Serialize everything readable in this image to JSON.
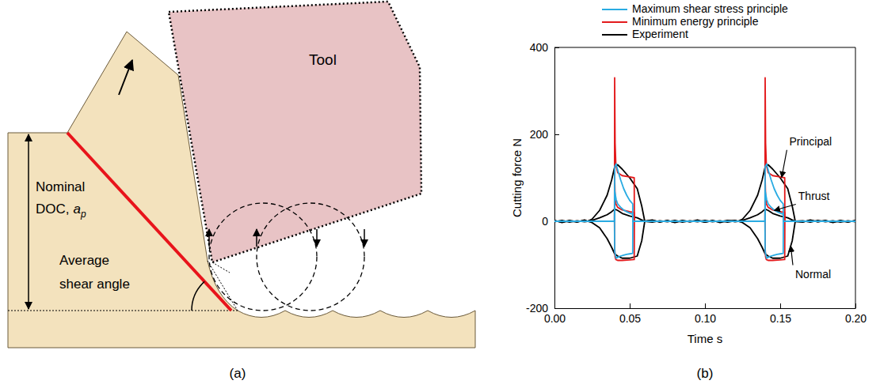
{
  "diagram": {
    "tool_label": "Tool",
    "doc_label": {
      "lines": [
        "Nominal",
        "DOC,"
      ],
      "symbol": "a",
      "subscript": "p"
    },
    "shear_label": [
      "Average",
      "shear angle"
    ],
    "caption": "(a)"
  },
  "chart_data": {
    "type": "line",
    "caption": "(b)",
    "x_label": "Time s",
    "y_label": "Cutting force N",
    "xlim": [
      0,
      0.2
    ],
    "ylim": [
      -200,
      400
    ],
    "xticks": [
      {
        "value": 0,
        "label": "0.00"
      },
      {
        "value": 0.05,
        "label": "0.05"
      },
      {
        "value": 0.1,
        "label": "0.10"
      },
      {
        "value": 0.15,
        "label": "0.15"
      },
      {
        "value": 0.2,
        "label": "0.20"
      }
    ],
    "yticks": [
      -200,
      0,
      200,
      400
    ],
    "legend": "top",
    "series": [
      {
        "name": "Maximum shear stress principle",
        "color": "#29abe2",
        "x": [
          0,
          0.0399,
          0.04,
          0.041,
          0.042,
          0.044,
          0.046,
          0.048,
          0.05,
          0.052,
          0.0521,
          0.1399,
          0.14,
          0.141,
          0.142,
          0.144,
          0.146,
          0.148,
          0.15,
          0.152,
          0.1521,
          0.2
        ],
        "principal": [
          0,
          0,
          125,
          132,
          118,
          95,
          75,
          60,
          48,
          40,
          0,
          0,
          125,
          132,
          118,
          95,
          75,
          60,
          48,
          40,
          0,
          0
        ],
        "thrust": [
          0,
          0,
          70,
          50,
          40,
          32,
          26,
          22,
          19,
          16,
          0,
          0,
          70,
          50,
          40,
          32,
          26,
          22,
          19,
          16,
          0,
          0
        ],
        "normal": [
          0,
          0,
          -70,
          -85,
          -83,
          -80,
          -78,
          -76,
          -75,
          -74,
          0,
          0,
          -70,
          -85,
          -83,
          -80,
          -78,
          -76,
          -75,
          -74,
          0,
          0
        ]
      },
      {
        "name": "Minimum energy principle",
        "color": "#e31a1c",
        "x": [
          0,
          0.0399,
          0.04,
          0.0403,
          0.0408,
          0.042,
          0.045,
          0.05,
          0.053,
          0.0531,
          0.1399,
          0.14,
          0.1403,
          0.1408,
          0.142,
          0.145,
          0.15,
          0.153,
          0.1531,
          0.2
        ],
        "principal": [
          0,
          0,
          330,
          180,
          130,
          112,
          105,
          102,
          100,
          0,
          0,
          330,
          180,
          130,
          112,
          105,
          102,
          100,
          0,
          0
        ],
        "thrust": [
          0,
          0,
          100,
          55,
          40,
          32,
          26,
          22,
          20,
          0,
          0,
          100,
          55,
          40,
          32,
          26,
          22,
          20,
          0,
          0
        ],
        "normal": [
          0,
          0,
          -60,
          -82,
          -88,
          -90,
          -90,
          -89,
          -88,
          0,
          0,
          -60,
          -82,
          -88,
          -90,
          -90,
          -89,
          -88,
          0,
          0
        ]
      },
      {
        "name": "Experiment",
        "color": "#000000",
        "x": [
          0,
          0.005,
          0.01,
          0.015,
          0.02,
          0.022,
          0.025,
          0.03,
          0.035,
          0.038,
          0.04,
          0.042,
          0.045,
          0.05,
          0.055,
          0.058,
          0.06,
          0.065,
          0.07,
          0.075,
          0.08,
          0.085,
          0.09,
          0.095,
          0.1,
          0.105,
          0.11,
          0.115,
          0.12,
          0.122,
          0.125,
          0.13,
          0.135,
          0.138,
          0.14,
          0.142,
          0.145,
          0.15,
          0.155,
          0.158,
          0.16,
          0.165,
          0.17,
          0.175,
          0.18,
          0.185,
          0.19,
          0.195,
          0.2
        ],
        "principal": [
          2,
          -3,
          1,
          -2,
          3,
          0,
          5,
          25,
          60,
          95,
          125,
          130,
          120,
          100,
          75,
          35,
          0,
          3,
          -2,
          2,
          -3,
          1,
          -1,
          3,
          -2,
          2,
          -3,
          1,
          2,
          0,
          5,
          25,
          60,
          95,
          125,
          130,
          120,
          100,
          75,
          35,
          0,
          -2,
          3,
          -1,
          2,
          -3,
          1,
          -2,
          2
        ],
        "thrust": [
          -1,
          2,
          -2,
          1,
          -1,
          0,
          2,
          8,
          15,
          22,
          28,
          25,
          18,
          12,
          8,
          3,
          0,
          -2,
          1,
          -1,
          2,
          -2,
          1,
          -1,
          2,
          -1,
          1,
          -2,
          1,
          0,
          2,
          8,
          15,
          22,
          28,
          25,
          18,
          12,
          8,
          3,
          0,
          1,
          -2,
          2,
          -1,
          1,
          -2,
          1,
          -1
        ],
        "normal": [
          1,
          -2,
          2,
          -1,
          2,
          0,
          -3,
          -15,
          -40,
          -60,
          -75,
          -80,
          -85,
          -85,
          -80,
          -45,
          0,
          2,
          -1,
          1,
          -2,
          2,
          -1,
          1,
          -2,
          1,
          -1,
          2,
          -1,
          0,
          -3,
          -15,
          -40,
          -60,
          -75,
          -80,
          -85,
          -85,
          -80,
          -45,
          0,
          -1,
          2,
          -1,
          1,
          -2,
          2,
          -1,
          1
        ]
      }
    ],
    "annotations": [
      {
        "text": "Principal",
        "x": 0.156,
        "y": 175,
        "arrow_x": 0.151,
        "arrow_y": 101
      },
      {
        "text": "Thrust",
        "x": 0.162,
        "y": 50,
        "arrow_x": 0.146,
        "arrow_y": 25
      },
      {
        "text": "Normal",
        "x": 0.16,
        "y": -130,
        "arrow_x": 0.157,
        "arrow_y": -57
      }
    ]
  }
}
